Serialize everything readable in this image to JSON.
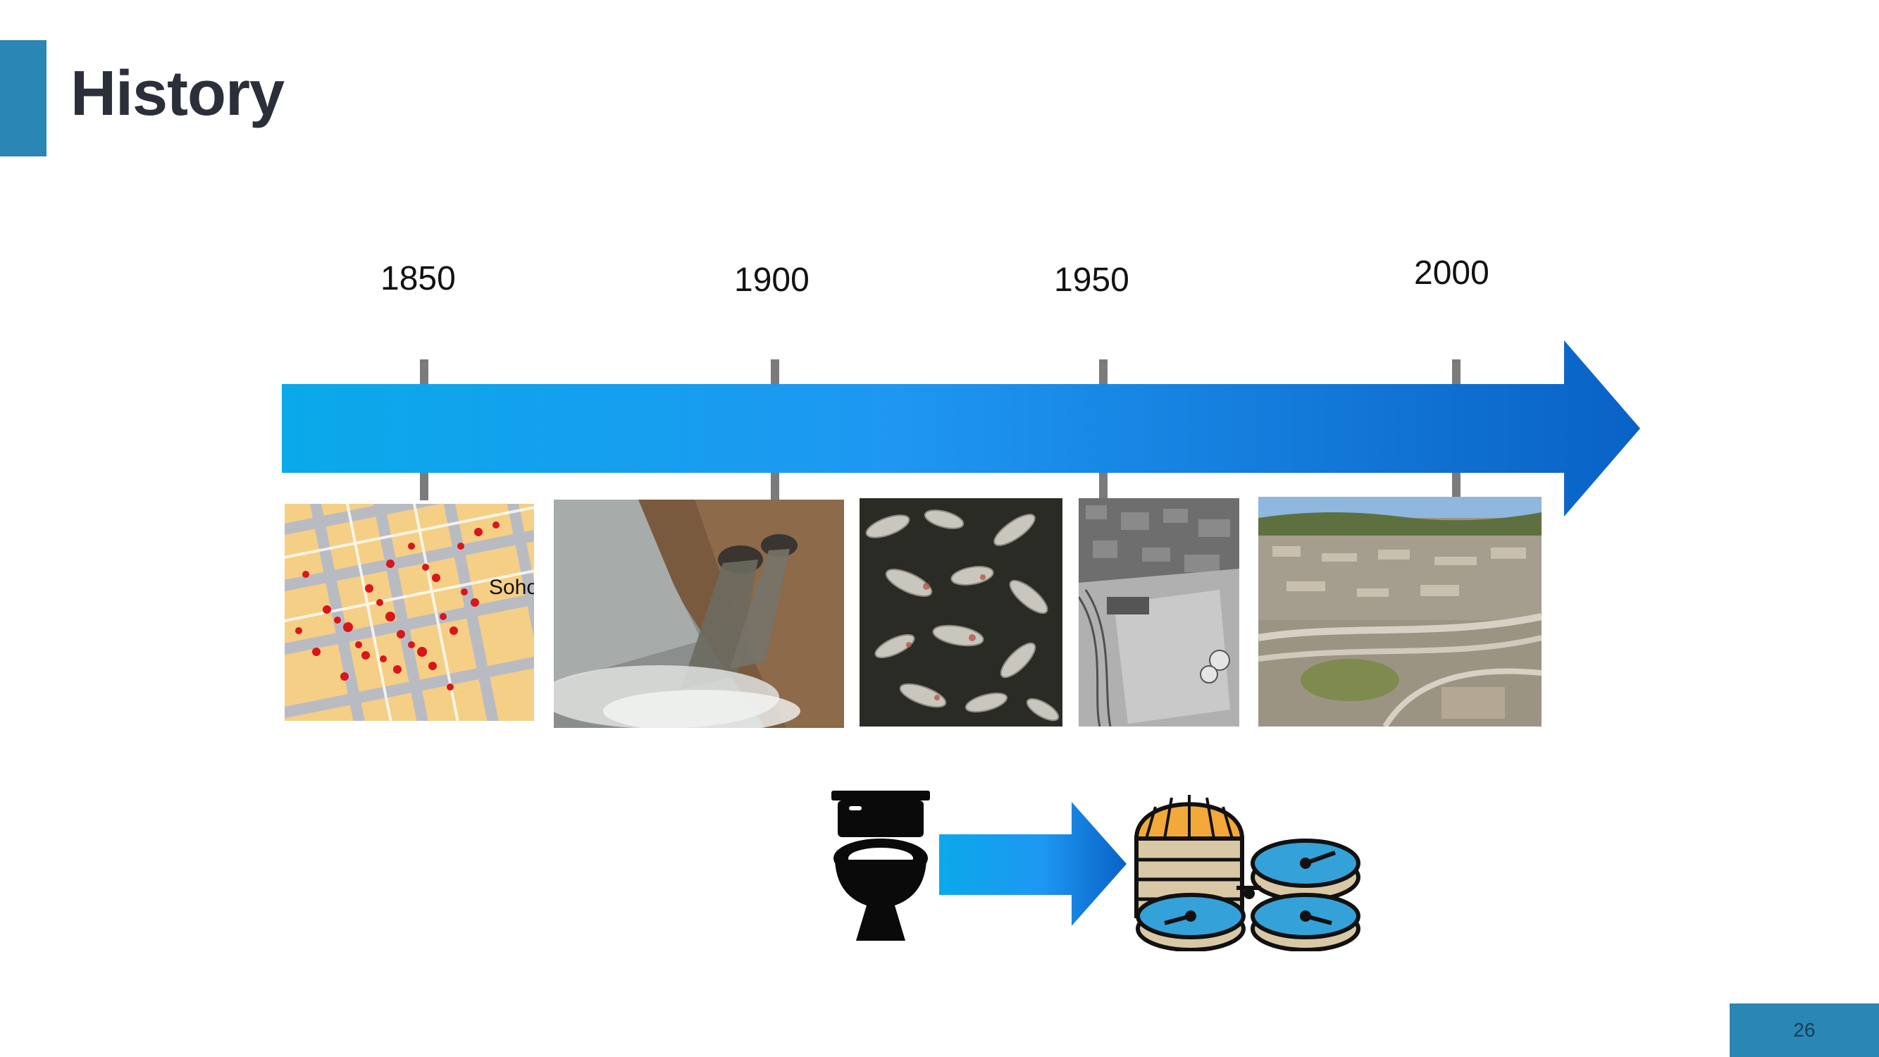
{
  "slide": {
    "title": "History",
    "page_number": "26"
  },
  "timeline": {
    "years": [
      "1850",
      "1900",
      "1950",
      "2000"
    ],
    "arrow_gradient": [
      "#0aa9ea",
      "#1e90ef",
      "#0a62c6"
    ]
  },
  "photos": [
    {
      "subject": "soho-cholera-map",
      "map_label": "Soho"
    },
    {
      "subject": "sewage-outfall-pipes"
    },
    {
      "subject": "dead-fish"
    },
    {
      "subject": "aerial-treatment-plant-bw"
    },
    {
      "subject": "aerial-city-color"
    }
  ],
  "process": {
    "from_icon": "toilet-icon",
    "to_icon": "treatment-plant-icon"
  },
  "colors": {
    "accent": "#2a86b4",
    "title_text": "#2b2f3a"
  }
}
